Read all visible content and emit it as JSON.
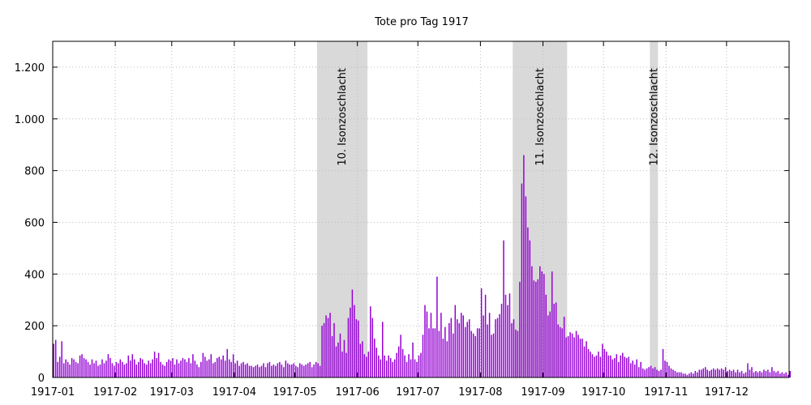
{
  "chart_data": {
    "type": "bar",
    "title": "Tote pro Tag 1917",
    "xlabel": "",
    "ylabel": "",
    "x_start": "1917-01-01",
    "x_end": "1917-12-31",
    "ylim": [
      0,
      1300
    ],
    "yticks": [
      0,
      200,
      400,
      600,
      800,
      1000,
      1200
    ],
    "ytick_labels": [
      "0",
      "200",
      "400",
      "600",
      "800",
      "1.000",
      "1.200"
    ],
    "xticks": [
      "1917-01-01",
      "1917-02-01",
      "1917-03-01",
      "1917-04-01",
      "1917-05-01",
      "1917-06-01",
      "1917-07-01",
      "1917-08-01",
      "1917-09-01",
      "1917-10-01",
      "1917-11-01",
      "1917-12-01"
    ],
    "xtick_labels": [
      "1917-01",
      "1917-02",
      "1917-03",
      "1917-04",
      "1917-05",
      "1917-06",
      "1917-07",
      "1917-08",
      "1917-09",
      "1917-10",
      "1917-11",
      "1917-12"
    ],
    "grid": true,
    "bar_color": "#9400d3",
    "band_color": "#d9d9d9",
    "bands": [
      {
        "start": "1917-05-12",
        "end": "1917-06-05",
        "label": "10. Isonzoschlacht"
      },
      {
        "start": "1917-08-17",
        "end": "1917-09-12",
        "label": "11. Isonzoschlacht"
      },
      {
        "start": "1917-10-24",
        "end": "1917-10-27",
        "label": "12. Isonzoschlacht"
      }
    ],
    "values": [
      130,
      145,
      60,
      80,
      140,
      55,
      70,
      60,
      50,
      75,
      70,
      60,
      55,
      85,
      90,
      75,
      70,
      60,
      50,
      70,
      55,
      65,
      45,
      50,
      70,
      55,
      65,
      90,
      75,
      55,
      45,
      60,
      55,
      70,
      60,
      50,
      55,
      85,
      65,
      90,
      70,
      50,
      60,
      75,
      70,
      55,
      50,
      65,
      55,
      70,
      100,
      75,
      95,
      60,
      50,
      45,
      60,
      70,
      65,
      75,
      50,
      70,
      55,
      65,
      75,
      70,
      60,
      75,
      55,
      90,
      65,
      50,
      40,
      60,
      95,
      80,
      65,
      70,
      90,
      55,
      60,
      75,
      80,
      70,
      85,
      65,
      110,
      70,
      60,
      90,
      55,
      65,
      45,
      55,
      60,
      50,
      55,
      45,
      45,
      40,
      45,
      50,
      40,
      45,
      55,
      40,
      55,
      60,
      45,
      50,
      45,
      55,
      60,
      50,
      40,
      65,
      55,
      50,
      50,
      55,
      45,
      40,
      55,
      50,
      45,
      50,
      55,
      60,
      40,
      50,
      60,
      55,
      45,
      200,
      210,
      240,
      230,
      250,
      160,
      210,
      120,
      135,
      170,
      100,
      145,
      95,
      230,
      270,
      340,
      280,
      225,
      220,
      130,
      140,
      90,
      80,
      100,
      275,
      230,
      150,
      115,
      85,
      70,
      215,
      85,
      65,
      85,
      75,
      60,
      70,
      95,
      120,
      165,
      110,
      85,
      60,
      90,
      70,
      135,
      70,
      60,
      85,
      95,
      165,
      280,
      255,
      190,
      250,
      190,
      190,
      390,
      180,
      250,
      150,
      195,
      140,
      210,
      230,
      170,
      280,
      225,
      210,
      250,
      240,
      195,
      215,
      225,
      180,
      170,
      160,
      190,
      190,
      345,
      240,
      320,
      205,
      250,
      165,
      170,
      225,
      230,
      245,
      285,
      530,
      320,
      280,
      325,
      210,
      225,
      185,
      180,
      370,
      750,
      860,
      700,
      580,
      530,
      430,
      375,
      370,
      380,
      430,
      410,
      400,
      320,
      240,
      255,
      410,
      285,
      290,
      205,
      195,
      190,
      235,
      155,
      160,
      175,
      170,
      155,
      180,
      165,
      150,
      150,
      120,
      140,
      110,
      100,
      90,
      80,
      85,
      100,
      80,
      130,
      110,
      100,
      85,
      85,
      70,
      75,
      90,
      60,
      85,
      95,
      80,
      75,
      80,
      55,
      65,
      50,
      70,
      40,
      60,
      35,
      30,
      35,
      40,
      45,
      35,
      40,
      30,
      25,
      30,
      110,
      65,
      60,
      45,
      35,
      30,
      25,
      20,
      20,
      20,
      15,
      15,
      10,
      15,
      20,
      15,
      25,
      20,
      30,
      30,
      35,
      40,
      30,
      25,
      30,
      35,
      30,
      35,
      30,
      35,
      30,
      40,
      25,
      30,
      25,
      30,
      20,
      30,
      20,
      25,
      15,
      20,
      55,
      30,
      40,
      20,
      25,
      20,
      25,
      20,
      30,
      25,
      30,
      20,
      40,
      25,
      20,
      25,
      15,
      20,
      15,
      20,
      10,
      25
    ]
  }
}
